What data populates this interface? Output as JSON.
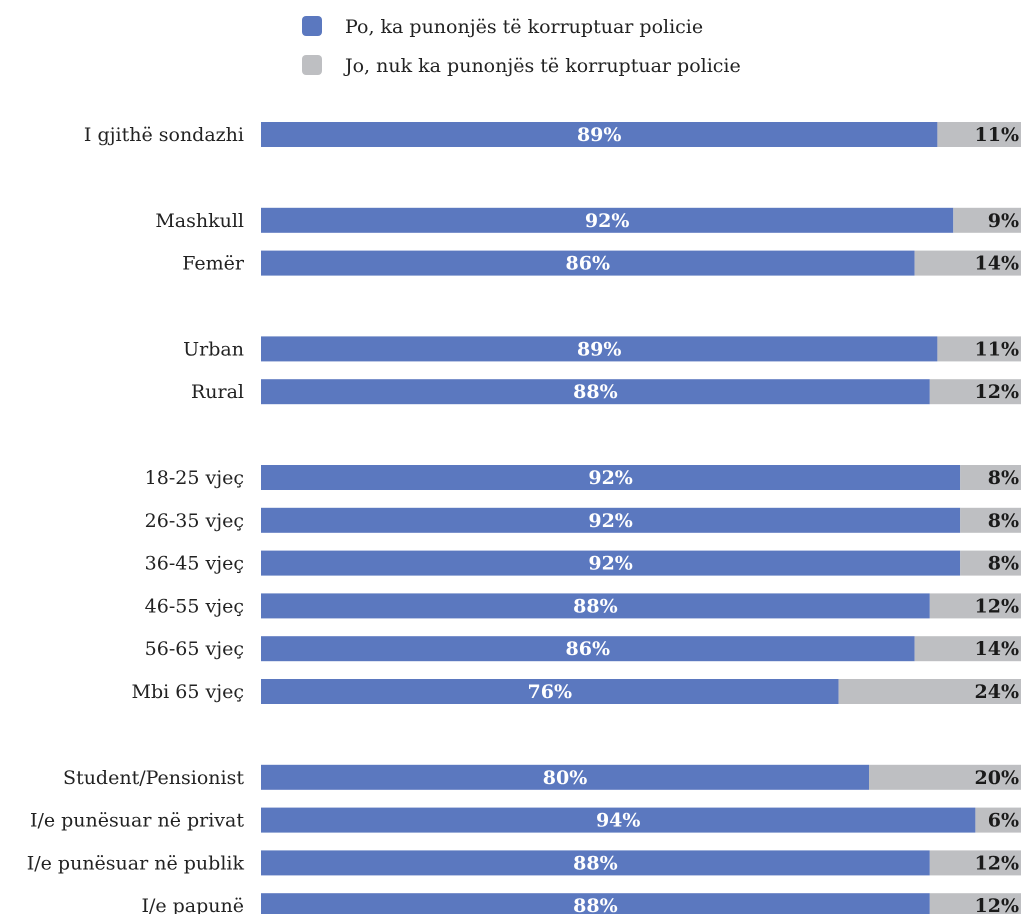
{
  "chart_data": {
    "type": "bar",
    "orientation": "horizontal",
    "stacked": true,
    "legend_placement": "top",
    "colors": {
      "yes": "#5b78bf",
      "no": "#bebfc2"
    },
    "series": [
      {
        "name": "Po, ka punonjës të korruptuar policie",
        "key": "yes"
      },
      {
        "name": "Jo, nuk ka punonjës të korruptuar policie",
        "key": "no"
      }
    ],
    "groups": [
      {
        "rows": [
          {
            "category": "I gjithë sondazhi",
            "yes": 89,
            "no": 11,
            "yes_label": "89%",
            "no_label": "11%"
          }
        ]
      },
      {
        "rows": [
          {
            "category": "Mashkull",
            "yes": 92,
            "no": 9,
            "yes_label": "92%",
            "no_label": "9%"
          },
          {
            "category": "Femër",
            "yes": 86,
            "no": 14,
            "yes_label": "86%",
            "no_label": "14%"
          }
        ]
      },
      {
        "rows": [
          {
            "category": "Urban",
            "yes": 89,
            "no": 11,
            "yes_label": "89%",
            "no_label": "11%"
          },
          {
            "category": "Rural",
            "yes": 88,
            "no": 12,
            "yes_label": "88%",
            "no_label": "12%"
          }
        ]
      },
      {
        "rows": [
          {
            "category": "18-25 vjeç",
            "yes": 92,
            "no": 8,
            "yes_label": "92%",
            "no_label": "8%"
          },
          {
            "category": "26-35 vjeç",
            "yes": 92,
            "no": 8,
            "yes_label": "92%",
            "no_label": "8%"
          },
          {
            "category": "36-45 vjeç",
            "yes": 92,
            "no": 8,
            "yes_label": "92%",
            "no_label": "8%"
          },
          {
            "category": "46-55 vjeç",
            "yes": 88,
            "no": 12,
            "yes_label": "88%",
            "no_label": "12%"
          },
          {
            "category": "56-65 vjeç",
            "yes": 86,
            "no": 14,
            "yes_label": "86%",
            "no_label": "14%"
          },
          {
            "category": "Mbi 65 vjeç",
            "yes": 76,
            "no": 24,
            "yes_label": "76%",
            "no_label": "24%"
          }
        ]
      },
      {
        "rows": [
          {
            "category": "Student/Pensionist",
            "yes": 80,
            "no": 20,
            "yes_label": "80%",
            "no_label": "20%"
          },
          {
            "category": "I/e punësuar në privat",
            "yes": 94,
            "no": 6,
            "yes_label": "94%",
            "no_label": "6%"
          },
          {
            "category": "I/e punësuar në publik",
            "yes": 88,
            "no": 12,
            "yes_label": "88%",
            "no_label": "12%"
          },
          {
            "category": "I/e papunë",
            "yes": 88,
            "no": 12,
            "yes_label": "88%",
            "no_label": "12%"
          }
        ]
      }
    ]
  }
}
